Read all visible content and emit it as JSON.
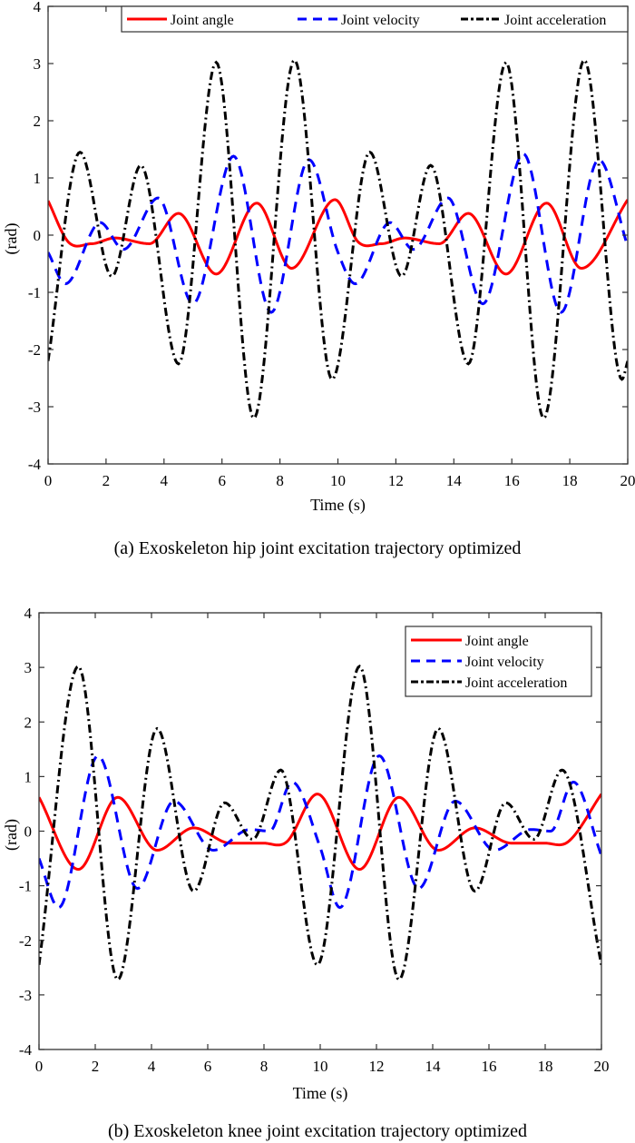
{
  "chart_data": [
    {
      "type": "line",
      "title": "",
      "caption": "(a) Exoskeleton hip joint excitation trajectory optimized",
      "xlabel": "Time (s)",
      "ylabel": "(rad)",
      "xlim": [
        0,
        20
      ],
      "ylim": [
        -4,
        4
      ],
      "xticks": [
        0,
        2,
        4,
        6,
        8,
        10,
        12,
        14,
        16,
        18,
        20
      ],
      "yticks": [
        -4,
        -3,
        -2,
        -1,
        0,
        1,
        2,
        3,
        4
      ],
      "grid": false,
      "legend_placement": "top-right-horizontal",
      "series": [
        {
          "name": "Joint angle",
          "color": "#ff0000",
          "style": "solid",
          "x": [
            0,
            0.7,
            1.5,
            2.3,
            3.5,
            4.5,
            5.8,
            7.2,
            8.4,
            9.9,
            10.7,
            11.5,
            12.3,
            13.5,
            14.5,
            15.8,
            17.2,
            18.4,
            20
          ],
          "y": [
            0.6,
            -0.12,
            -0.15,
            -0.05,
            -0.15,
            0.38,
            -0.68,
            0.56,
            -0.58,
            0.62,
            -0.12,
            -0.15,
            -0.05,
            -0.15,
            0.38,
            -0.68,
            0.56,
            -0.58,
            0.62
          ]
        },
        {
          "name": "Joint velocity",
          "color": "#0000ff",
          "style": "dashed",
          "x": [
            0,
            0.6,
            1.8,
            2.6,
            3.8,
            5.0,
            6.4,
            7.7,
            9.0,
            10.0,
            10.6,
            11.8,
            12.6,
            13.8,
            15.0,
            16.4,
            17.7,
            19.0,
            20
          ],
          "y": [
            -0.3,
            -0.85,
            0.22,
            -0.25,
            0.65,
            -1.2,
            1.38,
            -1.35,
            1.32,
            -0.3,
            -0.85,
            0.22,
            -0.25,
            0.65,
            -1.2,
            1.42,
            -1.35,
            1.32,
            -0.2
          ]
        },
        {
          "name": "Joint acceleration",
          "color": "#000000",
          "style": "dashdot",
          "x": [
            0,
            1.1,
            2.2,
            3.2,
            4.5,
            5.8,
            7.1,
            8.5,
            9.8,
            11.1,
            12.2,
            13.2,
            14.5,
            15.8,
            17.1,
            18.5,
            19.8,
            20
          ],
          "y": [
            -2.2,
            1.45,
            -0.72,
            1.22,
            -2.25,
            3.02,
            -3.2,
            3.06,
            -2.52,
            1.45,
            -0.72,
            1.22,
            -2.25,
            3.02,
            -3.2,
            3.06,
            -2.52,
            -2.2
          ]
        }
      ]
    },
    {
      "type": "line",
      "title": "",
      "caption": "(b) Exoskeleton knee joint excitation trajectory optimized",
      "xlabel": "Time (s)",
      "ylabel": "(rad)",
      "xlim": [
        0,
        20
      ],
      "ylim": [
        -4,
        4
      ],
      "xticks": [
        0,
        2,
        4,
        6,
        8,
        10,
        12,
        14,
        16,
        18,
        20
      ],
      "yticks": [
        -4,
        -3,
        -2,
        -1,
        0,
        1,
        2,
        3,
        4
      ],
      "grid": false,
      "legend_placement": "top-right",
      "series": [
        {
          "name": "Joint angle",
          "color": "#ff0000",
          "style": "solid",
          "x": [
            0,
            1.4,
            2.8,
            4.2,
            5.5,
            6.8,
            8.0,
            8.8,
            9.9,
            11.4,
            12.8,
            14.2,
            15.5,
            16.8,
            18.0,
            18.8,
            20
          ],
          "y": [
            0.62,
            -0.7,
            0.62,
            -0.35,
            0.06,
            -0.22,
            -0.22,
            -0.2,
            0.68,
            -0.7,
            0.62,
            -0.35,
            0.06,
            -0.22,
            -0.22,
            -0.2,
            0.68
          ]
        },
        {
          "name": "Joint velocity",
          "color": "#0000ff",
          "style": "dashed",
          "x": [
            0,
            0.7,
            2.1,
            3.5,
            4.8,
            6.2,
            7.5,
            8.2,
            9.0,
            10.0,
            10.7,
            12.1,
            13.5,
            14.8,
            16.2,
            17.5,
            18.2,
            19.0,
            20
          ],
          "y": [
            -0.5,
            -1.4,
            1.38,
            -1.05,
            0.55,
            -0.35,
            0.03,
            0.0,
            0.9,
            -0.3,
            -1.4,
            1.38,
            -1.05,
            0.55,
            -0.35,
            0.03,
            0.0,
            0.9,
            -0.45
          ]
        },
        {
          "name": "Joint acceleration",
          "color": "#000000",
          "style": "dashdot",
          "x": [
            0,
            1.4,
            2.8,
            4.2,
            5.5,
            6.6,
            7.6,
            8.6,
            9.9,
            11.4,
            12.8,
            14.2,
            15.5,
            16.6,
            17.6,
            18.6,
            20
          ],
          "y": [
            -2.45,
            3.02,
            -2.72,
            1.88,
            -1.1,
            0.52,
            -0.15,
            1.12,
            -2.45,
            3.02,
            -2.72,
            1.88,
            -1.1,
            0.52,
            -0.15,
            1.12,
            -2.45
          ]
        }
      ]
    }
  ]
}
